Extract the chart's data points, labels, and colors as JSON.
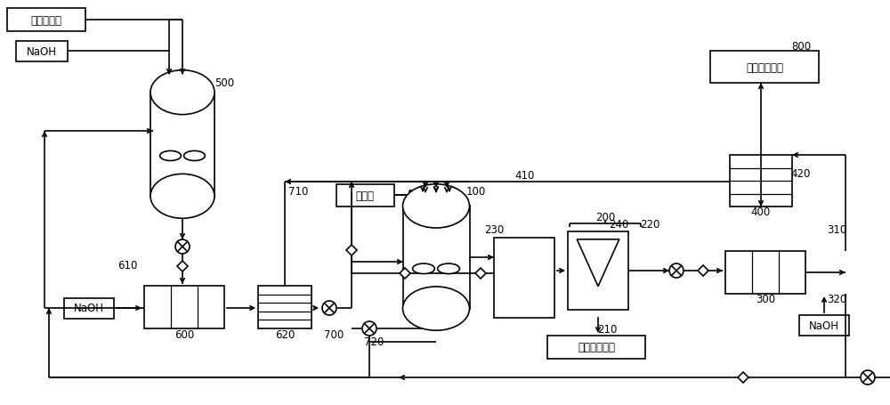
{
  "bg_color": "#ffffff",
  "labels": {
    "jiajiyiqing": "甲氨基乙腈",
    "naoh1": "NaOH",
    "naoh2": "NaOH",
    "naoh3": "NaOH",
    "danjiyangqi": "单氯氨",
    "yishuijinsuanchengpin": "一水肌酸成品",
    "feiliaoshengchanxitong": "肥料生产系统",
    "n500": "500",
    "n600": "600",
    "n610": "610",
    "n620": "620",
    "n700": "700",
    "n710": "710",
    "n720": "720",
    "n100": "100",
    "n200": "200",
    "n210": "210",
    "n220": "220",
    "n230": "230",
    "n240": "240",
    "n300": "300",
    "n310": "310",
    "n320": "320",
    "n400": "400",
    "n410": "410",
    "n420": "420",
    "n800": "800"
  },
  "figsize": [
    10.0,
    4.56
  ],
  "dpi": 100
}
